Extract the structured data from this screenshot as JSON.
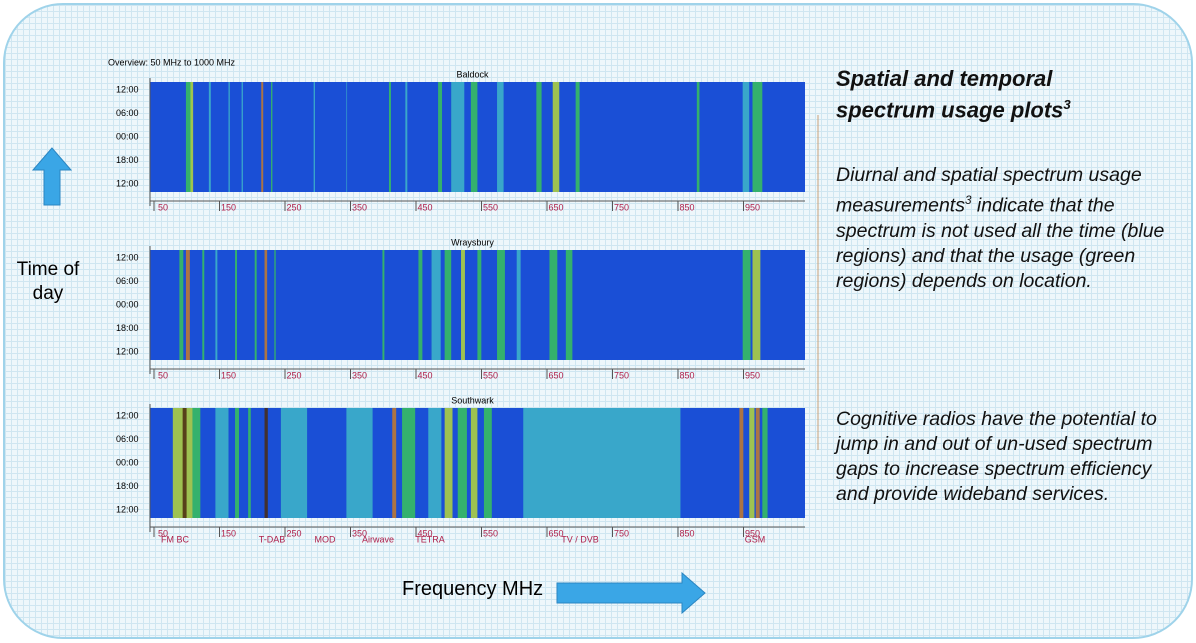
{
  "overview": "Overview:  50 MHz to 1000 MHz",
  "panels": [
    {
      "title": "Baldock",
      "yticks": [
        "12:00",
        "06:00",
        "00:00",
        "18:00",
        "12:00"
      ],
      "xticks": [
        50,
        150,
        250,
        350,
        450,
        550,
        650,
        750,
        850,
        950
      ]
    },
    {
      "title": "Wraysbury",
      "yticks": [
        "12:00",
        "06:00",
        "00:00",
        "18:00",
        "12:00"
      ],
      "xticks": [
        50,
        150,
        250,
        350,
        450,
        550,
        650,
        750,
        850,
        950
      ]
    },
    {
      "title": "Southwark",
      "yticks": [
        "12:00",
        "06:00",
        "00:00",
        "18:00",
        "12:00"
      ],
      "xticks": [
        50,
        150,
        250,
        350,
        450,
        550,
        650,
        750,
        850,
        950
      ]
    }
  ],
  "bands": [
    "FM BC",
    "T-DAB",
    "MOD",
    "Airwave",
    "TETRA",
    "TV / DVB",
    "GSM"
  ],
  "y_axis_label": "Time of day",
  "x_axis_label": "Frequency MHz",
  "heading": "Spatial and temporal spectrum usage plots",
  "heading_sup": "3",
  "paragraph1_a": "Diurnal and spatial spectrum usage measurements",
  "paragraph1_sup": "3",
  "paragraph1_b": "indicate that the spectrum is not used all the time (blue regions) and that the usage (green regions) depends on location.",
  "paragraph2": "Cognitive radios have the potential to jump in and out of un-used spectrum gaps to increase spectrum efficiency and provide wideband services."
}
